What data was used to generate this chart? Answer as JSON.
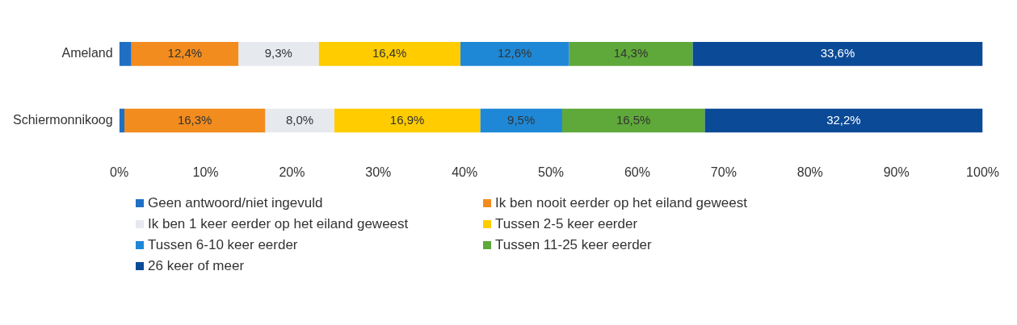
{
  "chart_data": {
    "type": "bar",
    "orientation": "horizontal",
    "stacked": true,
    "grid": false,
    "legend": "bottom",
    "categories": [
      "Ameland",
      "Schiermonnikoog"
    ],
    "xlim": [
      0,
      100
    ],
    "xticks": [
      {
        "value": 0,
        "label": "0%"
      },
      {
        "value": 10,
        "label": "10%"
      },
      {
        "value": 20,
        "label": "20%"
      },
      {
        "value": 30,
        "label": "30%"
      },
      {
        "value": 40,
        "label": "40%"
      },
      {
        "value": 50,
        "label": "50%"
      },
      {
        "value": 60,
        "label": "60%"
      },
      {
        "value": 70,
        "label": "70%"
      },
      {
        "value": 80,
        "label": "80%"
      },
      {
        "value": 90,
        "label": "90%"
      },
      {
        "value": 100,
        "label": "100%"
      }
    ],
    "series": [
      {
        "name": "Geen antwoord/niet ingevuld",
        "color": "#1f6fc5",
        "values": [
          1.4,
          0.6
        ]
      },
      {
        "name": "Ik ben nooit eerder op het eiland geweest",
        "color": "#f28c1e",
        "values": [
          12.4,
          16.3
        ],
        "value_labels": [
          "12,4%",
          "16,3%"
        ]
      },
      {
        "name": "Ik ben 1 keer eerder op het eiland geweest",
        "color": "#e6e9ee",
        "values": [
          9.3,
          8.0
        ],
        "value_labels": [
          "9,3%",
          "8,0%"
        ]
      },
      {
        "name": "Tussen 2-5 keer eerder",
        "color": "#ffcc00",
        "values": [
          16.4,
          16.9
        ],
        "value_labels": [
          "16,4%",
          "16,9%"
        ]
      },
      {
        "name": "Tussen 6-10 keer eerder",
        "color": "#1e88d6",
        "values": [
          12.6,
          9.5
        ],
        "value_labels": [
          "12,6%",
          "9,5%"
        ]
      },
      {
        "name": "Tussen 11-25 keer eerder",
        "color": "#5fa83a",
        "values": [
          14.3,
          16.5
        ],
        "value_labels": [
          "14,3%",
          "16,5%"
        ]
      },
      {
        "name": "26 keer of meer",
        "color": "#0b4a97",
        "values": [
          33.6,
          32.2
        ],
        "value_labels": [
          "33,6%",
          "32,2%"
        ]
      }
    ]
  }
}
